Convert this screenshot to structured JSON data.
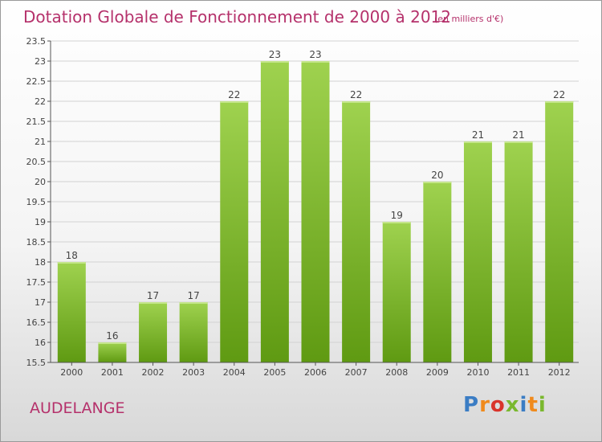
{
  "header": {
    "title": "Dotation Globale de Fonctionnement de 2000 à 2012",
    "unit": "(en milliers d'€)"
  },
  "footer": {
    "commune": "AUDELANGE",
    "logo_text": "Proxiti"
  },
  "colors": {
    "title": "#b5316b",
    "bar_top": "#9fd24f",
    "bar_bottom": "#5f9a12",
    "axis": "#555555",
    "grid": "#d2d2d2",
    "logo": [
      "#3b7dc4",
      "#f08a1c",
      "#d9342b",
      "#7ab82e",
      "#3b7dc4",
      "#f08a1c",
      "#7ab82e"
    ]
  },
  "chart_data": {
    "type": "bar",
    "title": "Dotation Globale de Fonctionnement de 2000 à 2012",
    "unit": "(en milliers d'€)",
    "categories": [
      "2000",
      "2001",
      "2002",
      "2003",
      "2004",
      "2005",
      "2006",
      "2007",
      "2008",
      "2009",
      "2010",
      "2011",
      "2012"
    ],
    "values": [
      18,
      16,
      17,
      17,
      22,
      23,
      23,
      22,
      19,
      20,
      21,
      21,
      22
    ],
    "ylim": [
      15.5,
      23.5
    ],
    "yticks": [
      "15.5",
      "16",
      "16.5",
      "17",
      "17.5",
      "18",
      "18.5",
      "19",
      "19.5",
      "20",
      "20.5",
      "21",
      "21.5",
      "22",
      "22.5",
      "23",
      "23.5"
    ],
    "grid": true,
    "legend": "none"
  }
}
